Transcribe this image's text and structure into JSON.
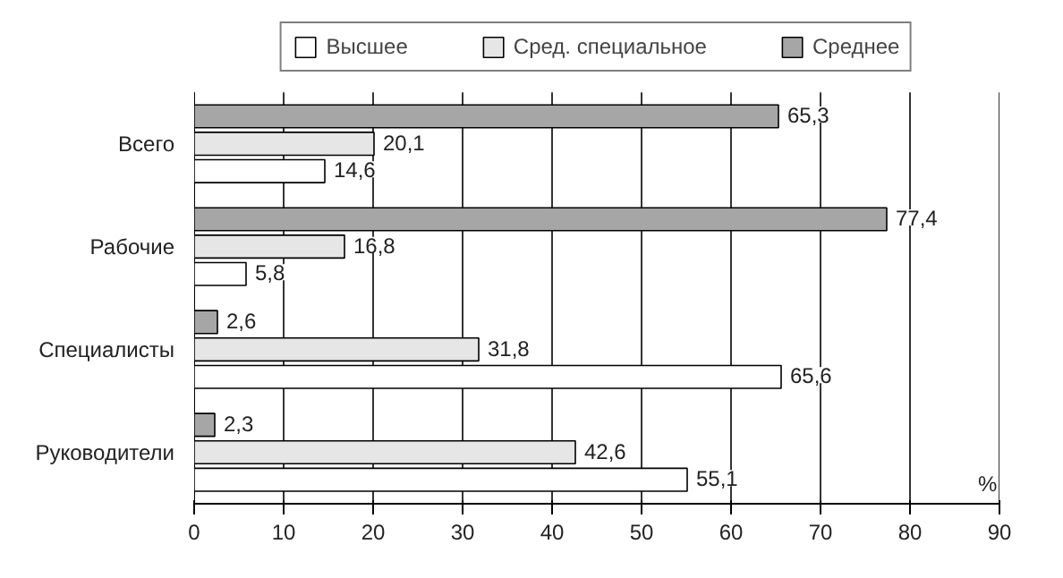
{
  "chart_data": {
    "type": "bar",
    "orientation": "horizontal",
    "categories": [
      "Всего",
      "Рабочие",
      "Специалисты",
      "Руководители"
    ],
    "series": [
      {
        "name": "Высшее",
        "color": "#ffffff",
        "values": [
          14.6,
          5.8,
          65.6,
          55.1
        ],
        "value_labels": [
          "14,6",
          "5,8",
          "65,6",
          "55,1"
        ]
      },
      {
        "name": "Сред. специальное",
        "color": "#e6e6e6",
        "values": [
          20.1,
          16.8,
          31.8,
          42.6
        ],
        "value_labels": [
          "20,1",
          "16,8",
          "31,8",
          "42,6"
        ]
      },
      {
        "name": "Среднее",
        "color": "#a6a6a6",
        "values": [
          65.3,
          77.4,
          2.6,
          2.3
        ],
        "value_labels": [
          "65,3",
          "77,4",
          "2,6",
          "2,3"
        ]
      }
    ],
    "xlabel": "%",
    "xlim": [
      0,
      90
    ],
    "xticks": [
      0,
      10,
      20,
      30,
      40,
      50,
      60,
      70,
      80,
      90
    ],
    "grid": "x",
    "legend": "top"
  }
}
